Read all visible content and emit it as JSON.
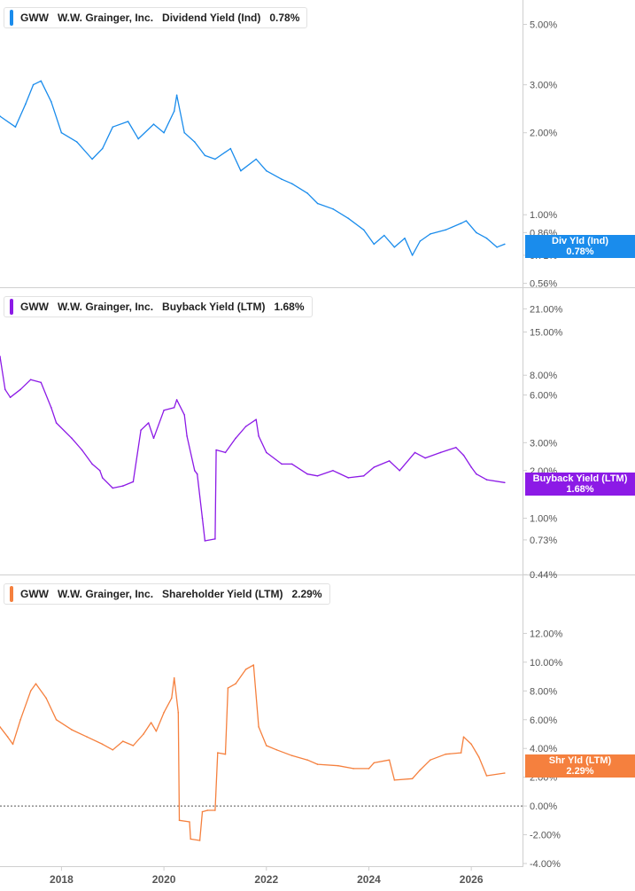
{
  "chart_data": [
    {
      "type": "line",
      "scale": "log",
      "ticker": "GWW",
      "company": "W.W. Grainger, Inc.",
      "metric": "Dividend Yield (Ind)",
      "current": "0.78%",
      "tag_label": "Div Yld (Ind)",
      "color": "#1a8cec",
      "ylim": [
        0.55,
        5.7
      ],
      "ticks": [
        {
          "v": 5.0,
          "label": "5.00%"
        },
        {
          "v": 3.0,
          "label": "3.00%"
        },
        {
          "v": 2.0,
          "label": "2.00%"
        },
        {
          "v": 1.0,
          "label": "1.00%"
        },
        {
          "v": 0.86,
          "label": "0.86%"
        },
        {
          "v": 0.71,
          "label": "0.71%"
        },
        {
          "v": 0.56,
          "label": "0.56%"
        }
      ],
      "x": [
        2016.8,
        2017.1,
        2017.3,
        2017.45,
        2017.6,
        2017.8,
        2018.0,
        2018.3,
        2018.6,
        2018.8,
        2019.0,
        2019.3,
        2019.5,
        2019.8,
        2020.0,
        2020.2,
        2020.25,
        2020.4,
        2020.6,
        2020.8,
        2021.0,
        2021.3,
        2021.5,
        2021.8,
        2022.0,
        2022.3,
        2022.5,
        2022.8,
        2023.0,
        2023.3,
        2023.6,
        2023.9,
        2024.1,
        2024.3,
        2024.5,
        2024.7,
        2024.85,
        2025.0,
        2025.2,
        2025.5,
        2025.8,
        2025.9,
        2026.1,
        2026.3,
        2026.5,
        2026.65
      ],
      "values": [
        2.3,
        2.1,
        2.55,
        3.0,
        3.1,
        2.6,
        2.0,
        1.85,
        1.6,
        1.75,
        2.1,
        2.2,
        1.9,
        2.15,
        2.0,
        2.4,
        2.75,
        2.0,
        1.85,
        1.65,
        1.6,
        1.75,
        1.45,
        1.6,
        1.45,
        1.35,
        1.3,
        1.2,
        1.1,
        1.05,
        0.97,
        0.88,
        0.78,
        0.84,
        0.76,
        0.82,
        0.71,
        0.8,
        0.85,
        0.88,
        0.93,
        0.95,
        0.86,
        0.82,
        0.76,
        0.78
      ]
    },
    {
      "type": "line",
      "scale": "log",
      "ticker": "GWW",
      "company": "W.W. Grainger, Inc.",
      "metric": "Buyback Yield (LTM)",
      "current": "1.68%",
      "tag_label": "Buyback Yield (LTM)",
      "color": "#8c1ae6",
      "ylim": [
        0.43,
        24
      ],
      "ticks": [
        {
          "v": 21.0,
          "label": "21.00%"
        },
        {
          "v": 15.0,
          "label": "15.00%"
        },
        {
          "v": 8.0,
          "label": "8.00%"
        },
        {
          "v": 6.0,
          "label": "6.00%"
        },
        {
          "v": 3.0,
          "label": "3.00%"
        },
        {
          "v": 2.0,
          "label": "2.00%"
        },
        {
          "v": 1.0,
          "label": "1.00%"
        },
        {
          "v": 0.73,
          "label": "0.73%"
        },
        {
          "v": 0.44,
          "label": "0.44%"
        }
      ],
      "x": [
        2016.8,
        2016.9,
        2017.0,
        2017.2,
        2017.4,
        2017.6,
        2017.8,
        2017.9,
        2018.2,
        2018.4,
        2018.6,
        2018.75,
        2018.8,
        2019.0,
        2019.2,
        2019.4,
        2019.55,
        2019.7,
        2019.8,
        2020.0,
        2020.2,
        2020.25,
        2020.4,
        2020.45,
        2020.6,
        2020.65,
        2020.75,
        2020.8,
        2021.0,
        2021.02,
        2021.2,
        2021.4,
        2021.6,
        2021.8,
        2021.85,
        2022.0,
        2022.3,
        2022.5,
        2022.8,
        2023.0,
        2023.3,
        2023.6,
        2023.9,
        2024.1,
        2024.4,
        2024.6,
        2024.9,
        2025.1,
        2025.4,
        2025.7,
        2025.85,
        2026.0,
        2026.1,
        2026.3,
        2026.65
      ],
      "values": [
        10.5,
        6.5,
        5.8,
        6.5,
        7.5,
        7.2,
        5.0,
        4.0,
        3.2,
        2.7,
        2.2,
        2.0,
        1.8,
        1.55,
        1.6,
        1.7,
        3.6,
        4.0,
        3.2,
        4.8,
        5.0,
        5.6,
        4.5,
        3.3,
        2.0,
        1.9,
        1.0,
        0.72,
        0.74,
        2.7,
        2.6,
        3.2,
        3.8,
        4.2,
        3.3,
        2.6,
        2.2,
        2.2,
        1.9,
        1.85,
        2.0,
        1.8,
        1.85,
        2.1,
        2.3,
        2.0,
        2.6,
        2.4,
        2.6,
        2.8,
        2.5,
        2.1,
        1.9,
        1.75,
        1.68
      ]
    },
    {
      "type": "line",
      "scale": "linear",
      "ticker": "GWW",
      "company": "W.W. Grainger, Inc.",
      "metric": "Shareholder Yield (LTM)",
      "current": "2.29%",
      "tag_label": "Shr Yld (LTM)",
      "color": "#f5803e",
      "ylim": [
        -4.0,
        14.0
      ],
      "zero_line": true,
      "ticks": [
        {
          "v": 12.0,
          "label": "12.00%"
        },
        {
          "v": 10.0,
          "label": "10.00%"
        },
        {
          "v": 8.0,
          "label": "8.00%"
        },
        {
          "v": 6.0,
          "label": "6.00%"
        },
        {
          "v": 4.0,
          "label": "4.00%"
        },
        {
          "v": 2.0,
          "label": "2.00%"
        },
        {
          "v": 0.0,
          "label": "0.00%"
        },
        {
          "v": -2.0,
          "label": "-2.00%"
        },
        {
          "v": -4.0,
          "label": "-4.00%"
        }
      ],
      "x": [
        2016.8,
        2016.95,
        2017.05,
        2017.2,
        2017.4,
        2017.5,
        2017.7,
        2017.9,
        2018.2,
        2018.5,
        2018.8,
        2019.0,
        2019.2,
        2019.4,
        2019.6,
        2019.75,
        2019.85,
        2020.0,
        2020.15,
        2020.2,
        2020.28,
        2020.3,
        2020.5,
        2020.52,
        2020.7,
        2020.75,
        2020.85,
        2021.0,
        2021.05,
        2021.2,
        2021.25,
        2021.4,
        2021.6,
        2021.75,
        2021.85,
        2022.0,
        2022.2,
        2022.5,
        2022.8,
        2023.0,
        2023.4,
        2023.7,
        2024.0,
        2024.1,
        2024.4,
        2024.5,
        2024.85,
        2025.0,
        2025.2,
        2025.5,
        2025.8,
        2025.85,
        2026.0,
        2026.15,
        2026.3,
        2026.65
      ],
      "values": [
        5.5,
        4.8,
        4.3,
        6.0,
        8.0,
        8.5,
        7.5,
        6.0,
        5.3,
        4.8,
        4.3,
        3.9,
        4.5,
        4.2,
        5.0,
        5.8,
        5.2,
        6.5,
        7.5,
        8.9,
        6.5,
        -1.0,
        -1.1,
        -2.3,
        -2.4,
        -0.4,
        -0.3,
        -0.3,
        3.7,
        3.6,
        8.2,
        8.5,
        9.5,
        9.8,
        5.5,
        4.2,
        3.9,
        3.5,
        3.2,
        2.9,
        2.8,
        2.6,
        2.6,
        3.0,
        3.2,
        1.8,
        1.9,
        2.5,
        3.2,
        3.6,
        3.7,
        4.8,
        4.3,
        3.4,
        2.1,
        2.29
      ]
    }
  ],
  "x_axis": {
    "range": [
      2016.8,
      2027.0
    ],
    "ticks": [
      {
        "v": 2018,
        "label": "2018"
      },
      {
        "v": 2020,
        "label": "2020"
      },
      {
        "v": 2022,
        "label": "2022"
      },
      {
        "v": 2024,
        "label": "2024"
      },
      {
        "v": 2026,
        "label": "2026"
      }
    ]
  }
}
